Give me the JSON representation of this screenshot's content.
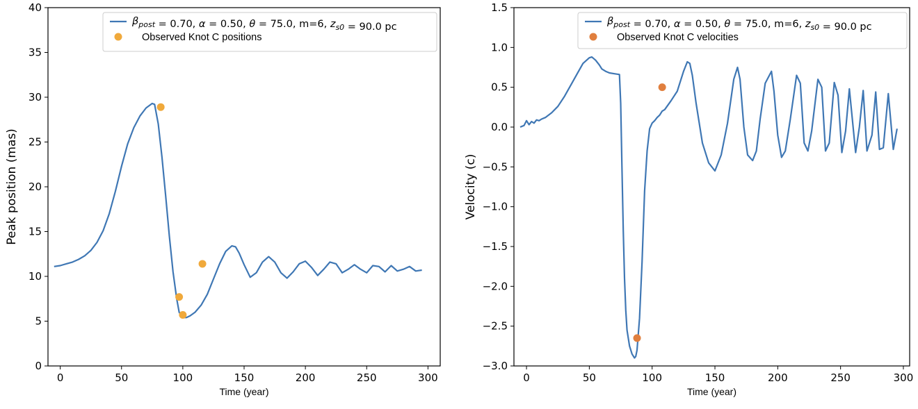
{
  "chart_data": [
    {
      "type": "line",
      "ylabel": "Peak position (mas)",
      "xlabel": "Time (year)",
      "xlim": [
        -10,
        310
      ],
      "ylim": [
        0,
        40
      ],
      "xticks": [
        0,
        50,
        100,
        150,
        200,
        250,
        300
      ],
      "yticks": [
        0,
        5,
        10,
        15,
        20,
        25,
        30,
        35,
        40
      ],
      "legend_position": "top-right",
      "grid": false,
      "series": [
        {
          "name": "β_post = 0.70, α = 0.50, θ = 75.0, m=6, z_s0 = 90.0 pc",
          "kind": "line",
          "color": "#3f77b4",
          "x": [
            -5,
            0,
            5,
            10,
            15,
            20,
            25,
            30,
            35,
            40,
            45,
            50,
            55,
            60,
            65,
            70,
            75,
            77,
            80,
            83,
            86,
            89,
            92,
            95,
            97,
            100,
            103,
            106,
            110,
            115,
            120,
            125,
            130,
            135,
            140,
            143,
            146,
            150,
            155,
            160,
            165,
            170,
            175,
            180,
            185,
            190,
            195,
            200,
            205,
            210,
            215,
            220,
            225,
            230,
            235,
            240,
            245,
            250,
            255,
            260,
            265,
            270,
            275,
            280,
            285,
            290,
            295
          ],
          "y": [
            11.1,
            11.2,
            11.4,
            11.6,
            11.9,
            12.3,
            12.9,
            13.8,
            15.1,
            17.0,
            19.5,
            22.3,
            24.8,
            26.6,
            27.9,
            28.8,
            29.3,
            29.2,
            27.0,
            23.3,
            19.0,
            14.5,
            10.5,
            7.5,
            6.0,
            5.4,
            5.4,
            5.6,
            6.0,
            6.8,
            8.0,
            9.7,
            11.4,
            12.8,
            13.4,
            13.3,
            12.6,
            11.3,
            9.9,
            10.4,
            11.6,
            12.2,
            11.6,
            10.4,
            9.8,
            10.5,
            11.4,
            11.7,
            11.0,
            10.1,
            10.8,
            11.6,
            11.4,
            10.4,
            10.8,
            11.3,
            10.8,
            10.4,
            11.2,
            11.1,
            10.5,
            11.2,
            10.6,
            10.8,
            11.1,
            10.6,
            10.7
          ]
        },
        {
          "name": "Observed Knot C positions",
          "kind": "scatter",
          "color": "#f0a93b",
          "x": [
            82,
            97,
            100,
            116
          ],
          "y": [
            28.9,
            7.7,
            5.7,
            11.4
          ]
        }
      ]
    },
    {
      "type": "line",
      "ylabel": "Velocity (c)",
      "xlabel": "Time (year)",
      "xlim": [
        -10,
        305
      ],
      "ylim": [
        -3.0,
        1.5
      ],
      "xticks": [
        0,
        50,
        100,
        150,
        200,
        250,
        300
      ],
      "yticks": [
        -3.0,
        -2.5,
        -2.0,
        -1.5,
        -1.0,
        -0.5,
        0.0,
        0.5,
        1.0,
        1.5
      ],
      "legend_position": "top-right",
      "grid": false,
      "series": [
        {
          "name": "β_post = 0.70, α = 0.50, θ = 75.0, m=6, z_s0 = 90.0 pc",
          "kind": "line",
          "color": "#3f77b4",
          "x": [
            -5,
            -2,
            0,
            2,
            4,
            6,
            8,
            10,
            12,
            15,
            20,
            25,
            30,
            35,
            40,
            45,
            50,
            52,
            55,
            58,
            60,
            63,
            66,
            70,
            74,
            75,
            76,
            77,
            78,
            79,
            80,
            82,
            84,
            86,
            87,
            88,
            90,
            92,
            94,
            96,
            98,
            100,
            102,
            104,
            106,
            108,
            110,
            115,
            120,
            125,
            128,
            130,
            132,
            135,
            140,
            145,
            150,
            155,
            160,
            165,
            168,
            170,
            173,
            176,
            180,
            183,
            186,
            190,
            195,
            197,
            200,
            203,
            206,
            210,
            215,
            218,
            221,
            224,
            227,
            232,
            235,
            238,
            241,
            245,
            248,
            251,
            254,
            257,
            262,
            265,
            268,
            271,
            275,
            278,
            281,
            284,
            288,
            292,
            295
          ],
          "y": [
            0.0,
            0.02,
            0.08,
            0.03,
            0.07,
            0.05,
            0.09,
            0.08,
            0.1,
            0.12,
            0.18,
            0.26,
            0.38,
            0.52,
            0.66,
            0.8,
            0.87,
            0.88,
            0.84,
            0.78,
            0.73,
            0.7,
            0.68,
            0.67,
            0.66,
            0.3,
            -0.5,
            -1.3,
            -1.9,
            -2.3,
            -2.55,
            -2.75,
            -2.85,
            -2.9,
            -2.88,
            -2.8,
            -2.4,
            -1.7,
            -0.8,
            -0.3,
            -0.02,
            0.05,
            0.08,
            0.12,
            0.15,
            0.2,
            0.22,
            0.33,
            0.45,
            0.7,
            0.82,
            0.8,
            0.65,
            0.3,
            -0.2,
            -0.45,
            -0.55,
            -0.35,
            0.05,
            0.6,
            0.75,
            0.6,
            0.0,
            -0.35,
            -0.42,
            -0.3,
            0.1,
            0.55,
            0.7,
            0.45,
            -0.1,
            -0.38,
            -0.3,
            0.1,
            0.65,
            0.55,
            -0.2,
            -0.3,
            -0.05,
            0.6,
            0.5,
            -0.3,
            -0.2,
            0.56,
            0.4,
            -0.32,
            -0.05,
            0.48,
            -0.32,
            0.0,
            0.46,
            -0.3,
            -0.1,
            0.44,
            -0.28,
            -0.26,
            0.42,
            -0.28,
            -0.02
          ]
        },
        {
          "name": "Observed Knot C velocities",
          "kind": "scatter",
          "color": "#e07f3e",
          "x": [
            88,
            108
          ],
          "y": [
            -2.65,
            0.5
          ]
        }
      ]
    }
  ]
}
